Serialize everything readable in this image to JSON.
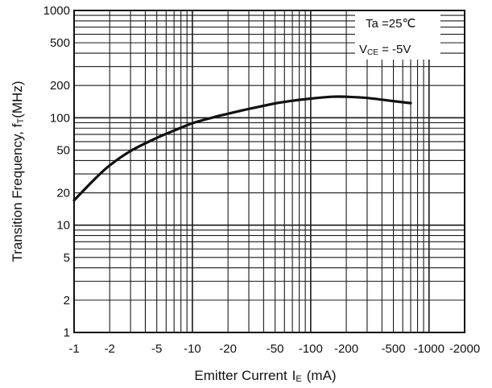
{
  "chart_data": {
    "type": "line",
    "title": "",
    "xlabel_main": "Emitter Current",
    "xlabel_sym": "I",
    "xlabel_sub": "E",
    "xlabel_unit": "(mA)",
    "ylabel_main": "Transition Frequency, f",
    "ylabel_sub": "T",
    "ylabel_unit": "(MHz)",
    "x_scale": "log",
    "y_scale": "log",
    "xlim": [
      -1,
      -2000
    ],
    "ylim": [
      1,
      1000
    ],
    "grid": true,
    "x_ticks": [
      {
        "value": -1,
        "label": "-1"
      },
      {
        "value": -2,
        "label": "-2"
      },
      {
        "value": -5,
        "label": "-5"
      },
      {
        "value": -10,
        "label": "-10"
      },
      {
        "value": -20,
        "label": "-20"
      },
      {
        "value": -50,
        "label": "-50"
      },
      {
        "value": -100,
        "label": "-100"
      },
      {
        "value": -200,
        "label": "-200"
      },
      {
        "value": -500,
        "label": "-500"
      },
      {
        "value": -1000,
        "label": "-1000"
      },
      {
        "value": -2000,
        "label": "-2000"
      }
    ],
    "y_ticks": [
      {
        "value": 1,
        "label": "1"
      },
      {
        "value": 2,
        "label": "2"
      },
      {
        "value": 5,
        "label": "5"
      },
      {
        "value": 10,
        "label": "10"
      },
      {
        "value": 20,
        "label": "20"
      },
      {
        "value": 50,
        "label": "50"
      },
      {
        "value": 100,
        "label": "100"
      },
      {
        "value": 200,
        "label": "200"
      },
      {
        "value": 500,
        "label": "500"
      },
      {
        "value": 1000,
        "label": "1000"
      }
    ],
    "conditions": {
      "ta_label": "Ta =25",
      "ta_unit": "℃",
      "vce_sym": "V",
      "vce_sub": "CE",
      "vce_value": " = -5V",
      "position": "top-right"
    },
    "series": [
      {
        "x": [
          -1,
          -1.5,
          -2,
          -3,
          -5,
          -7,
          -10,
          -15,
          -20,
          -30,
          -50,
          -70,
          -100,
          -150,
          -200,
          -300,
          -500,
          -700
        ],
        "y": [
          17,
          27,
          36,
          49,
          65,
          76,
          89,
          101,
          109,
          121,
          136,
          144,
          151,
          157,
          157,
          153,
          143,
          137
        ],
        "color": "#111111"
      }
    ]
  }
}
